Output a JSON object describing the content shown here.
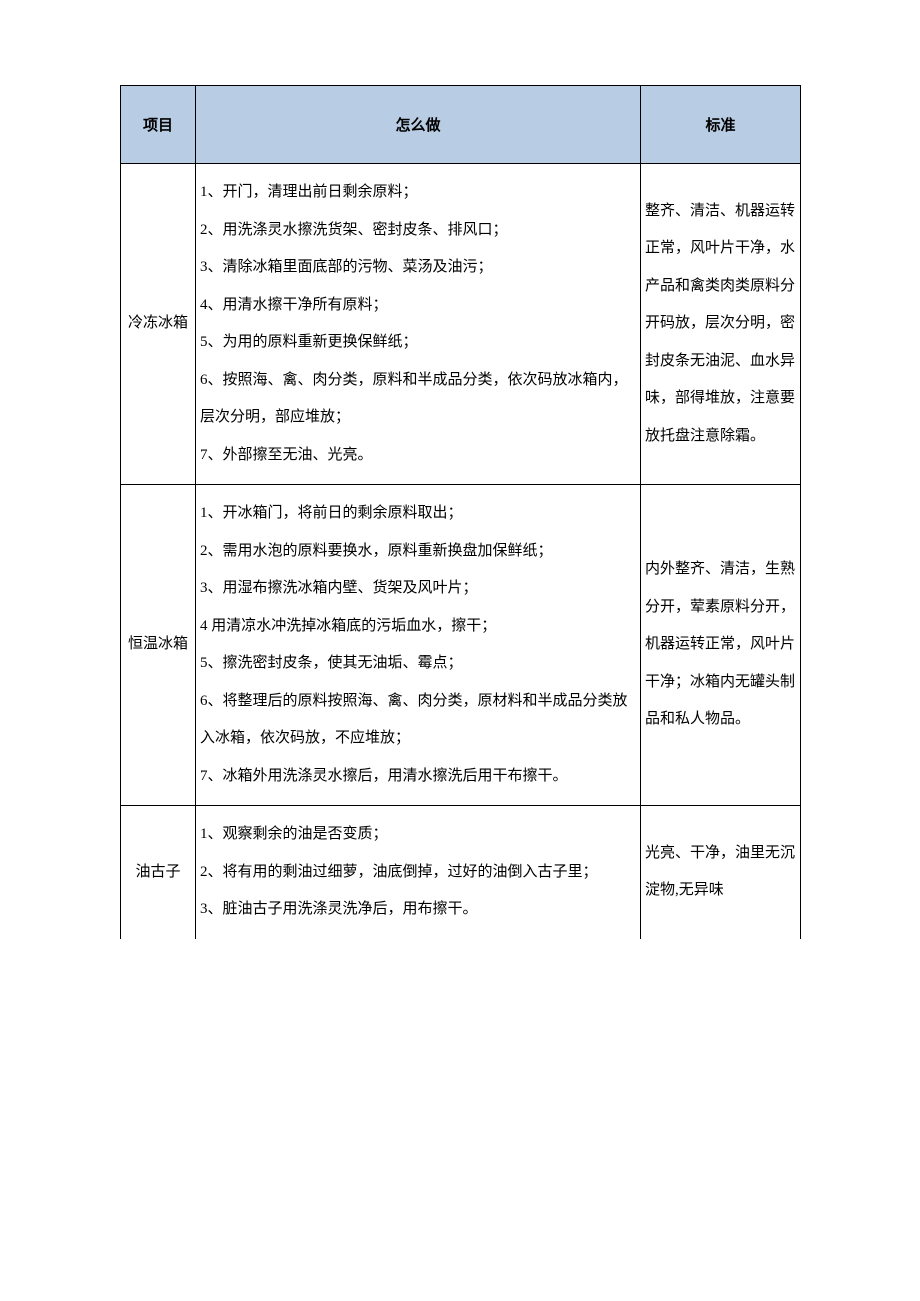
{
  "table": {
    "headers": {
      "item": "项目",
      "how": "怎么做",
      "standard": "标准"
    },
    "rows": [
      {
        "item": "冷冻冰箱",
        "how": "1、开门，清理出前日剩余原料；\n2、用洗涤灵水擦洗货架、密封皮条、排风口；\n3、清除冰箱里面底部的污物、菜汤及油污；\n4、用清水擦干净所有原料；\n5、为用的原料重新更换保鲜纸；\n6、按照海、禽、肉分类，原料和半成品分类，依次码放冰箱内，层次分明，部应堆放；\n7、外部擦至无油、光亮。",
        "standard": "整齐、清洁、机器运转正常，风叶片干净，水产品和禽类肉类原料分开码放，层次分明，密封皮条无油泥、血水异味，部得堆放，注意要放托盘注意除霜。"
      },
      {
        "item": "恒温冰箱",
        "how": "1、开冰箱门，将前日的剩余原料取出；\n2、需用水泡的原料要换水，原料重新换盘加保鲜纸；\n3、用湿布擦洗冰箱内壁、货架及风叶片；\n4 用清凉水冲洗掉冰箱底的污垢血水，擦干；\n5、擦洗密封皮条，使其无油垢、霉点；\n6、将整理后的原料按照海、禽、肉分类，原材料和半成品分类放入冰箱，依次码放，不应堆放；\n7、冰箱外用洗涤灵水擦后，用清水擦洗后用干布擦干。",
        "standard": "内外整齐、清洁，生熟分开，荤素原料分开，机器运转正常，风叶片干净；冰箱内无罐头制品和私人物品。"
      },
      {
        "item": "油古子",
        "how": "1、观察剩余的油是否变质；\n2、将有用的剩油过细萝，油底倒掉，过好的油倒入古子里；\n3、脏油古子用洗涤灵洗净后，用布擦干。",
        "standard": "光亮、干净，油里无沉淀物,无异味"
      }
    ],
    "styling": {
      "header_bg_color": "#b8cce4",
      "border_color": "#000000",
      "page_bg_color": "#ffffff",
      "font_family": "SimSun",
      "font_size": 15,
      "line_height": 2.5,
      "col_widths": {
        "item": 75,
        "how": 445,
        "standard": 160
      }
    }
  }
}
